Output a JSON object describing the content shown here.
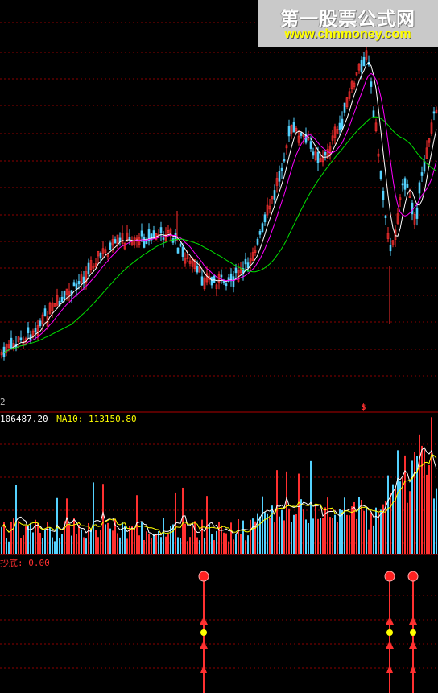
{
  "watermark": {
    "title": "第一股票公式网",
    "url": "www.chnmoney.com"
  },
  "price_panel": {
    "left_label": "2",
    "signal_glyph": "$",
    "colors": {
      "up": "#ff3030",
      "down": "#54d2ff",
      "ma_short": "#ffffff",
      "ma_mid": "#ff00ff",
      "ma_long": "#00e000",
      "grid": "#8b0000",
      "yellow": "#ffff00"
    }
  },
  "volume_panel": {
    "header_value": "106487.20",
    "ma10_label": "MA10:",
    "ma10_value": "113150.80"
  },
  "indicator_panel": {
    "label": "抄底",
    "value": "0.00",
    "signals": [
      {
        "bar": "signal-1"
      },
      {
        "bar": "signal-2"
      },
      {
        "bar": "signal-3"
      }
    ]
  },
  "chart_data": {
    "type": "candlestick",
    "description_series": [
      {
        "name": "price_close",
        "x": [
          0,
          30,
          60,
          90,
          120,
          150,
          180,
          210,
          230,
          250,
          270,
          300,
          320,
          340,
          360,
          380,
          400,
          420,
          440,
          455,
          470,
          485,
          500,
          515,
          530,
          544
        ],
        "values": [
          440,
          420,
          390,
          360,
          320,
          300,
          295,
          290,
          320,
          345,
          350,
          340,
          300,
          240,
          160,
          175,
          200,
          160,
          100,
          60,
          200,
          320,
          220,
          270,
          180,
          120
        ]
      }
    ]
  }
}
